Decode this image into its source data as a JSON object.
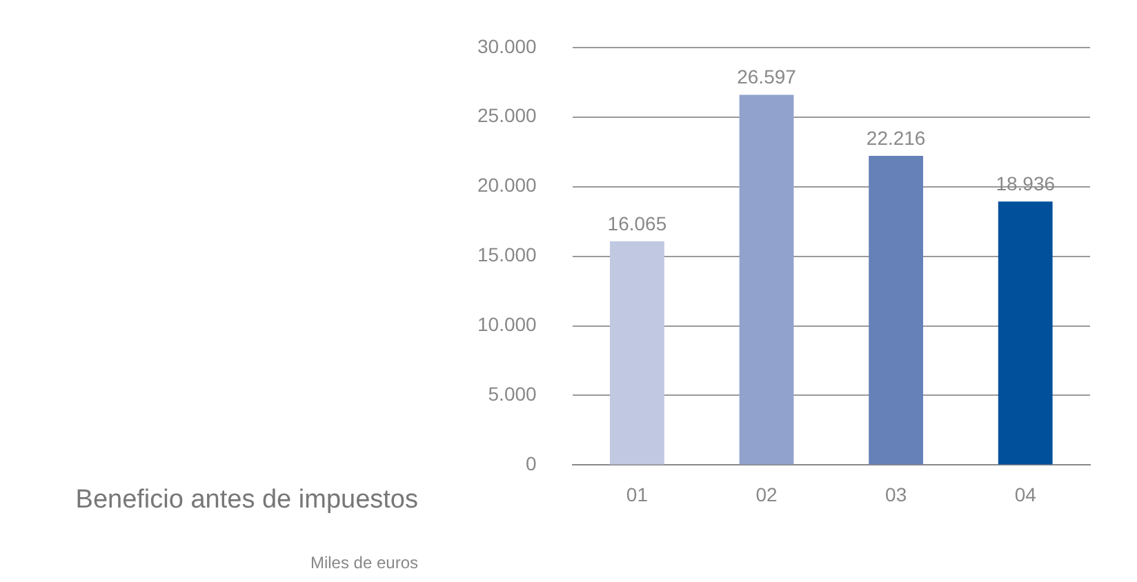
{
  "chart_data": {
    "type": "bar",
    "title": "Beneficio antes de impuestos",
    "subtitle": "Miles de euros",
    "categories": [
      "01",
      "02",
      "03",
      "04"
    ],
    "values": [
      16065,
      26597,
      22216,
      18936
    ],
    "colors": [
      "#c0c8e2",
      "#91a3cc",
      "#6680b8",
      "#00509b"
    ],
    "value_labels": [
      "16.065",
      "26.597",
      "22.216",
      "18.936"
    ],
    "ylim": [
      0,
      30000
    ],
    "yticks": [
      {
        "value": 0,
        "label": "0"
      },
      {
        "value": 5000,
        "label": "5.000"
      },
      {
        "value": 10000,
        "label": "10.000"
      },
      {
        "value": 15000,
        "label": "15.000"
      },
      {
        "value": 20000,
        "label": "20.000"
      },
      {
        "value": 25000,
        "label": "25.000"
      },
      {
        "value": 30000,
        "label": "30.000"
      }
    ],
    "grid": "y",
    "legend": false
  }
}
